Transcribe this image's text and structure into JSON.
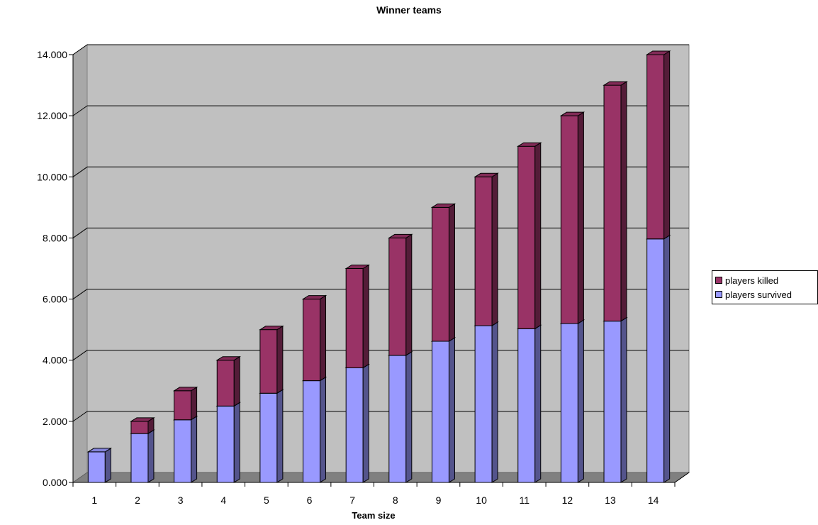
{
  "chart_data": {
    "type": "bar",
    "stacked": true,
    "three_d": true,
    "title": "Winner teams",
    "xlabel": "Team size",
    "ylabel": "",
    "categories": [
      "1",
      "2",
      "3",
      "4",
      "5",
      "6",
      "7",
      "8",
      "9",
      "10",
      "11",
      "12",
      "13",
      "14"
    ],
    "series": [
      {
        "name": "players survived",
        "color": "#9999ff",
        "values": [
          1.0,
          1.6,
          2.05,
          2.5,
          2.92,
          3.33,
          3.75,
          4.16,
          4.62,
          5.13,
          5.03,
          5.2,
          5.28,
          7.97
        ]
      },
      {
        "name": "players killed",
        "color": "#993366",
        "values": [
          0.0,
          0.4,
          0.95,
          1.5,
          2.08,
          2.67,
          3.25,
          3.84,
          4.38,
          4.87,
          5.97,
          6.8,
          7.72,
          6.03
        ]
      }
    ],
    "ylim": [
      0,
      14
    ],
    "yticks": [
      "0.000",
      "2.000",
      "4.000",
      "6.000",
      "8.000",
      "10.000",
      "12.000",
      "14.000"
    ],
    "grid": true,
    "legend_position": "right"
  }
}
